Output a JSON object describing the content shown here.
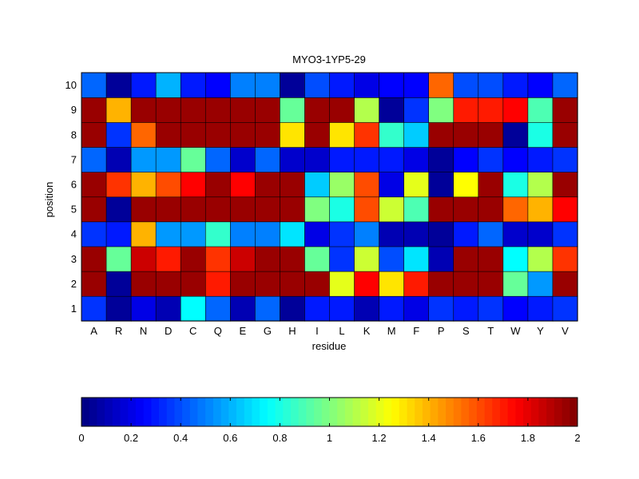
{
  "chart_data": {
    "type": "heatmap",
    "title": "MYO3-1YP5-29",
    "xlabel": "residue",
    "ylabel": "position",
    "x_categories": [
      "A",
      "R",
      "N",
      "D",
      "C",
      "Q",
      "E",
      "G",
      "H",
      "I",
      "L",
      "K",
      "M",
      "F",
      "P",
      "S",
      "T",
      "W",
      "Y",
      "V"
    ],
    "y_categories": [
      "1",
      "2",
      "3",
      "4",
      "5",
      "6",
      "7",
      "8",
      "9",
      "10"
    ],
    "values": [
      [
        0.35,
        0.05,
        0.2,
        0.1,
        0.75,
        0.45,
        0.1,
        0.45,
        0.05,
        0.3,
        0.3,
        0.1,
        0.3,
        0.2,
        0.35,
        0.3,
        0.35,
        0.25,
        0.3,
        0.35
      ],
      [
        1.95,
        0.05,
        1.95,
        1.95,
        1.95,
        1.7,
        1.95,
        1.95,
        1.95,
        1.95,
        1.2,
        1.75,
        1.3,
        1.7,
        1.95,
        1.95,
        1.95,
        0.95,
        0.55,
        1.95
      ],
      [
        1.95,
        0.95,
        1.85,
        1.7,
        1.95,
        1.65,
        1.85,
        1.95,
        1.95,
        0.95,
        0.35,
        1.15,
        0.4,
        0.7,
        0.1,
        1.95,
        1.95,
        0.75,
        1.1,
        1.65
      ],
      [
        0.35,
        0.3,
        1.4,
        0.55,
        0.55,
        0.85,
        0.5,
        0.5,
        0.7,
        0.2,
        0.35,
        0.5,
        0.1,
        0.1,
        0.05,
        0.3,
        0.45,
        0.15,
        0.15,
        0.35
      ],
      [
        1.95,
        0.05,
        1.95,
        1.95,
        1.95,
        1.95,
        1.95,
        1.95,
        1.95,
        1.0,
        0.8,
        1.6,
        1.15,
        0.9,
        1.95,
        1.95,
        1.95,
        1.55,
        1.4,
        1.75
      ],
      [
        1.95,
        1.65,
        1.4,
        1.6,
        1.75,
        1.95,
        1.75,
        1.95,
        1.95,
        0.65,
        1.05,
        1.6,
        0.2,
        1.2,
        0.05,
        1.25,
        1.95,
        0.8,
        1.1,
        1.95
      ],
      [
        0.45,
        0.1,
        0.55,
        0.55,
        0.95,
        0.45,
        0.15,
        0.45,
        0.15,
        0.15,
        0.3,
        0.3,
        0.3,
        0.2,
        0.05,
        0.25,
        0.35,
        0.25,
        0.3,
        0.35
      ],
      [
        1.95,
        0.35,
        1.55,
        1.95,
        1.95,
        1.95,
        1.95,
        1.95,
        1.3,
        1.95,
        1.3,
        1.65,
        0.85,
        0.65,
        1.95,
        1.95,
        1.95,
        0.05,
        0.8,
        1.95
      ],
      [
        1.95,
        1.4,
        1.95,
        1.95,
        1.95,
        1.95,
        1.95,
        1.95,
        0.95,
        1.95,
        1.95,
        1.1,
        0.05,
        0.35,
        1.0,
        1.7,
        1.7,
        1.75,
        0.9,
        1.95
      ],
      [
        0.45,
        0.05,
        0.3,
        0.6,
        0.3,
        0.25,
        0.5,
        0.5,
        0.05,
        0.4,
        0.3,
        0.2,
        0.25,
        0.25,
        1.55,
        0.4,
        0.4,
        0.3,
        0.25,
        0.45
      ]
    ],
    "colormap": "jet",
    "clim": [
      0,
      2
    ],
    "colorbar": {
      "orientation": "horizontal",
      "ticks": [
        0,
        0.2,
        0.4,
        0.6,
        0.8,
        1,
        1.2,
        1.4,
        1.6,
        1.8,
        2
      ],
      "tick_labels": [
        "0",
        "0.2",
        "0.4",
        "0.6",
        "0.8",
        "1",
        "1.2",
        "1.4",
        "1.6",
        "1.8",
        "2"
      ]
    },
    "legend": "bottom"
  }
}
